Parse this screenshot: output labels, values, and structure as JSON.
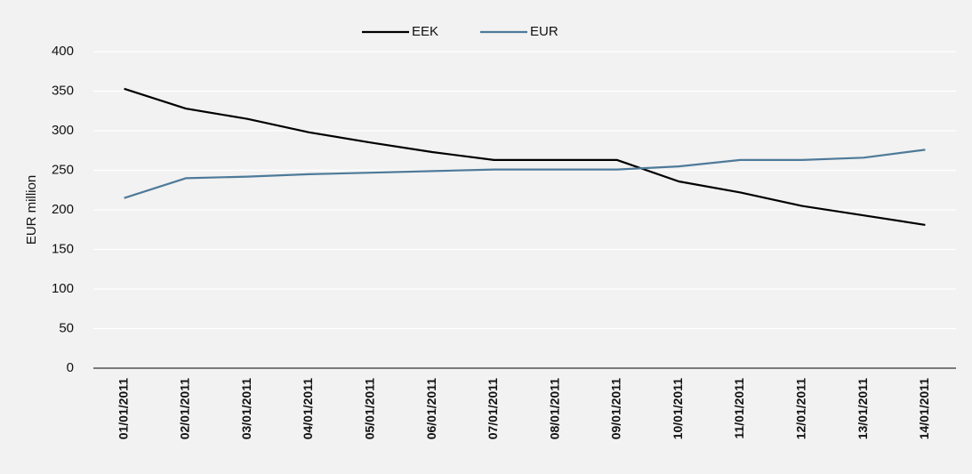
{
  "chart_data": {
    "type": "line",
    "categories": [
      "01/01/2011",
      "02/01/2011",
      "03/01/2011",
      "04/01/2011",
      "05/01/2011",
      "06/01/2011",
      "07/01/2011",
      "08/01/2011",
      "09/01/2011",
      "10/01/2011",
      "11/01/2011",
      "12/01/2011",
      "13/01/2011",
      "14/01/2011"
    ],
    "series": [
      {
        "name": "EEK",
        "color": "#000000",
        "values": [
          353,
          328,
          315,
          298,
          285,
          273,
          263,
          263,
          263,
          236,
          222,
          205,
          193,
          181
        ]
      },
      {
        "name": "EUR",
        "color": "#4e7a99",
        "values": [
          215,
          240,
          242,
          245,
          247,
          249,
          251,
          251,
          251,
          255,
          263,
          263,
          266,
          276
        ]
      }
    ],
    "y_label": "EUR million",
    "ylim": [
      0,
      400
    ],
    "yticks": [
      0,
      50,
      100,
      150,
      200,
      250,
      300,
      350,
      400
    ],
    "grid": true,
    "legend": "top"
  }
}
